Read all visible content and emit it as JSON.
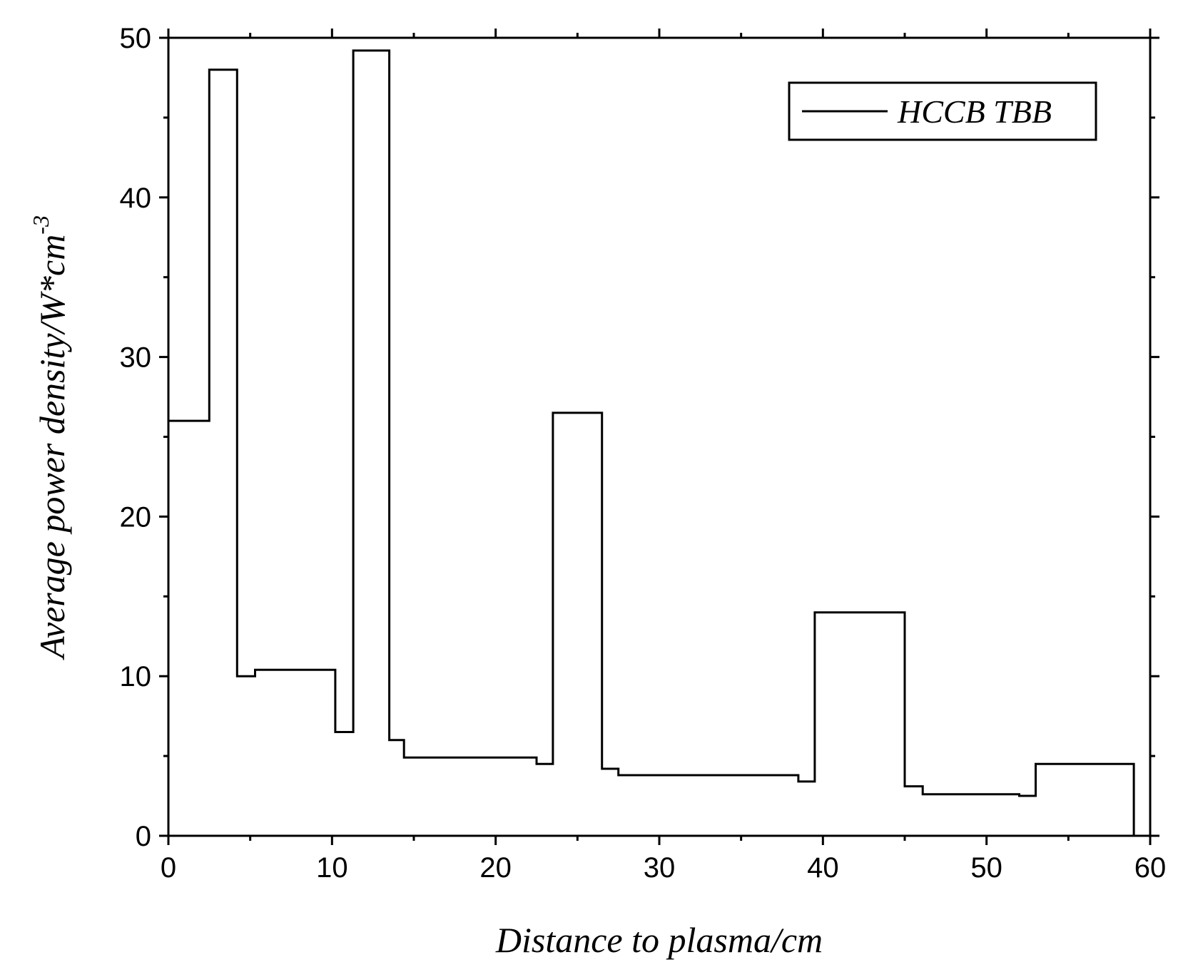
{
  "chart_data": {
    "type": "line",
    "step": true,
    "xlabel": "Distance to plasma/cm",
    "ylabel_main": "Average power density/W*cm",
    "ylabel_sup": "-3",
    "xlim": [
      0,
      60
    ],
    "ylim": [
      0,
      50
    ],
    "xticks": [
      0,
      10,
      20,
      30,
      40,
      50,
      60
    ],
    "yticks": [
      0,
      10,
      20,
      30,
      40,
      50
    ],
    "xtick_labels": [
      "0",
      "10",
      "20",
      "30",
      "40",
      "50",
      "60"
    ],
    "ytick_labels": [
      "0",
      "10",
      "20",
      "30",
      "40",
      "50"
    ],
    "grid": false,
    "legend_position": "top-right",
    "colors": {
      "line": "#000000",
      "background": "#ffffff"
    },
    "series": [
      {
        "name": "HCCB TBB",
        "x": [
          0,
          2.5,
          2.5,
          4.2,
          4.2,
          5.3,
          5.3,
          10.2,
          10.2,
          11.3,
          11.3,
          13.5,
          13.5,
          14.4,
          14.4,
          22.5,
          22.5,
          23.5,
          23.5,
          26.5,
          26.5,
          27.5,
          27.5,
          38.5,
          38.5,
          39.5,
          39.5,
          45.0,
          45.0,
          46.1,
          46.1,
          52.0,
          52.0,
          53.0,
          53.0,
          59.0,
          59.0
        ],
        "y": [
          26,
          26,
          48,
          48,
          10,
          10,
          10.4,
          10.4,
          6.5,
          6.5,
          49.2,
          49.2,
          6.0,
          6.0,
          4.9,
          4.9,
          4.5,
          4.5,
          26.5,
          26.5,
          4.2,
          4.2,
          3.8,
          3.8,
          3.4,
          3.4,
          14.0,
          14.0,
          3.1,
          3.1,
          2.6,
          2.6,
          2.5,
          2.5,
          4.5,
          4.5,
          0
        ]
      }
    ]
  }
}
